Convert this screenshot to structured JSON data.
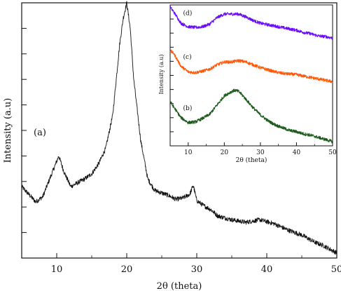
{
  "chart_data": [
    {
      "type": "line",
      "panel_label": "(a)",
      "xlabel": "2θ (theta)",
      "ylabel": "Intensity (a.u)",
      "xlim": [
        5,
        50
      ],
      "ylim": [
        0,
        1
      ],
      "y_ticks_labeled": false,
      "xticks": [
        10,
        20,
        30,
        40,
        50
      ],
      "tick_labels": [
        "10",
        "20",
        "30",
        "40",
        "50"
      ],
      "grid": false,
      "series": [
        {
          "color": "#111111",
          "x": [
            5,
            7,
            8,
            9,
            10.3,
            11,
            12,
            13,
            14,
            15,
            16,
            17,
            18,
            19,
            19.5,
            20,
            20.5,
            21,
            22,
            23,
            24,
            25,
            26,
            27,
            28,
            29,
            29.5,
            30,
            31,
            32,
            33,
            35,
            37,
            39,
            41,
            43,
            45,
            47,
            48,
            49,
            50
          ],
          "y": [
            0.28,
            0.22,
            0.24,
            0.31,
            0.4,
            0.34,
            0.28,
            0.295,
            0.31,
            0.33,
            0.37,
            0.43,
            0.56,
            0.84,
            0.94,
            1.0,
            0.9,
            0.7,
            0.46,
            0.31,
            0.265,
            0.255,
            0.245,
            0.23,
            0.235,
            0.25,
            0.285,
            0.225,
            0.205,
            0.19,
            0.165,
            0.15,
            0.14,
            0.15,
            0.135,
            0.11,
            0.09,
            0.06,
            0.05,
            0.035,
            0.02
          ]
        }
      ]
    },
    {
      "type": "line",
      "inset": true,
      "xlabel": "2θ (theta)",
      "ylabel": "Intensity (a.u)",
      "xlim": [
        5,
        50
      ],
      "ylim": [
        0,
        1
      ],
      "y_ticks_labeled": false,
      "xticks": [
        10,
        20,
        30,
        40,
        50
      ],
      "tick_labels": [
        "10",
        "20",
        "30",
        "40",
        "50"
      ],
      "grid": false,
      "series": [
        {
          "name": "(d)",
          "color": "#6a0dff",
          "x": [
            5,
            6,
            8,
            10,
            12,
            14,
            16,
            18,
            20,
            22,
            24,
            26,
            28,
            30,
            32,
            34,
            36,
            38,
            40,
            42,
            44,
            46,
            48,
            50
          ],
          "y": [
            0.985,
            0.95,
            0.87,
            0.845,
            0.84,
            0.845,
            0.865,
            0.91,
            0.935,
            0.935,
            0.935,
            0.915,
            0.89,
            0.87,
            0.86,
            0.85,
            0.84,
            0.83,
            0.82,
            0.805,
            0.795,
            0.78,
            0.775,
            0.765
          ]
        },
        {
          "name": "(c)",
          "color": "#ff5a0a",
          "x": [
            5,
            6,
            8,
            10,
            12,
            14,
            16,
            18,
            20,
            22,
            24,
            26,
            28,
            30,
            32,
            34,
            36,
            38,
            40,
            42,
            44,
            46,
            48,
            50
          ],
          "y": [
            0.675,
            0.655,
            0.565,
            0.525,
            0.52,
            0.53,
            0.545,
            0.575,
            0.595,
            0.595,
            0.605,
            0.595,
            0.575,
            0.555,
            0.54,
            0.525,
            0.515,
            0.51,
            0.505,
            0.495,
            0.485,
            0.475,
            0.465,
            0.455
          ]
        },
        {
          "name": "(b)",
          "color": "#1e5a1e",
          "x": [
            5,
            6,
            8,
            10,
            12,
            14,
            16,
            18,
            20,
            22,
            23,
            24,
            25,
            26,
            28,
            30,
            32,
            34,
            36,
            38,
            40,
            42,
            44,
            46,
            48,
            50
          ],
          "y": [
            0.315,
            0.275,
            0.2,
            0.165,
            0.17,
            0.195,
            0.225,
            0.29,
            0.355,
            0.385,
            0.395,
            0.385,
            0.36,
            0.33,
            0.27,
            0.22,
            0.18,
            0.15,
            0.13,
            0.11,
            0.1,
            0.085,
            0.075,
            0.06,
            0.045,
            0.03
          ]
        }
      ]
    }
  ]
}
